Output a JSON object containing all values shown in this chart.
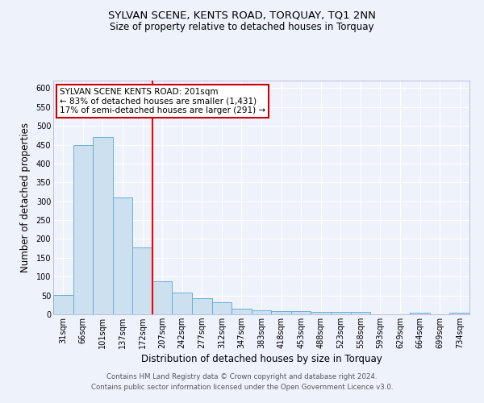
{
  "title": "SYLVAN SCENE, KENTS ROAD, TORQUAY, TQ1 2NN",
  "subtitle": "Size of property relative to detached houses in Torquay",
  "xlabel": "Distribution of detached houses by size in Torquay",
  "ylabel": "Number of detached properties",
  "categories": [
    "31sqm",
    "66sqm",
    "101sqm",
    "137sqm",
    "172sqm",
    "207sqm",
    "242sqm",
    "277sqm",
    "312sqm",
    "347sqm",
    "383sqm",
    "418sqm",
    "453sqm",
    "488sqm",
    "523sqm",
    "558sqm",
    "593sqm",
    "629sqm",
    "664sqm",
    "699sqm",
    "734sqm"
  ],
  "values": [
    52,
    450,
    470,
    310,
    178,
    88,
    57,
    43,
    32,
    16,
    10,
    9,
    9,
    7,
    6,
    7,
    1,
    0,
    4,
    0,
    5
  ],
  "bar_color": "#cce0f0",
  "bar_edge_color": "#6aaed6",
  "red_line_index": 5,
  "annotation_text": "SYLVAN SCENE KENTS ROAD: 201sqm\n← 83% of detached houses are smaller (1,431)\n17% of semi-detached houses are larger (291) →",
  "annotation_box_color": "#ffffff",
  "annotation_box_edge": "#cc0000",
  "ylim": [
    0,
    620
  ],
  "yticks": [
    0,
    50,
    100,
    150,
    200,
    250,
    300,
    350,
    400,
    450,
    500,
    550,
    600
  ],
  "footer1": "Contains HM Land Registry data © Crown copyright and database right 2024.",
  "footer2": "Contains public sector information licensed under the Open Government Licence v3.0.",
  "bg_color": "#eef2fb",
  "plot_bg_color": "#eef2fb",
  "grid_color": "#ffffff",
  "title_fontsize": 9.5,
  "subtitle_fontsize": 8.5,
  "axis_label_fontsize": 8.5,
  "tick_fontsize": 7
}
